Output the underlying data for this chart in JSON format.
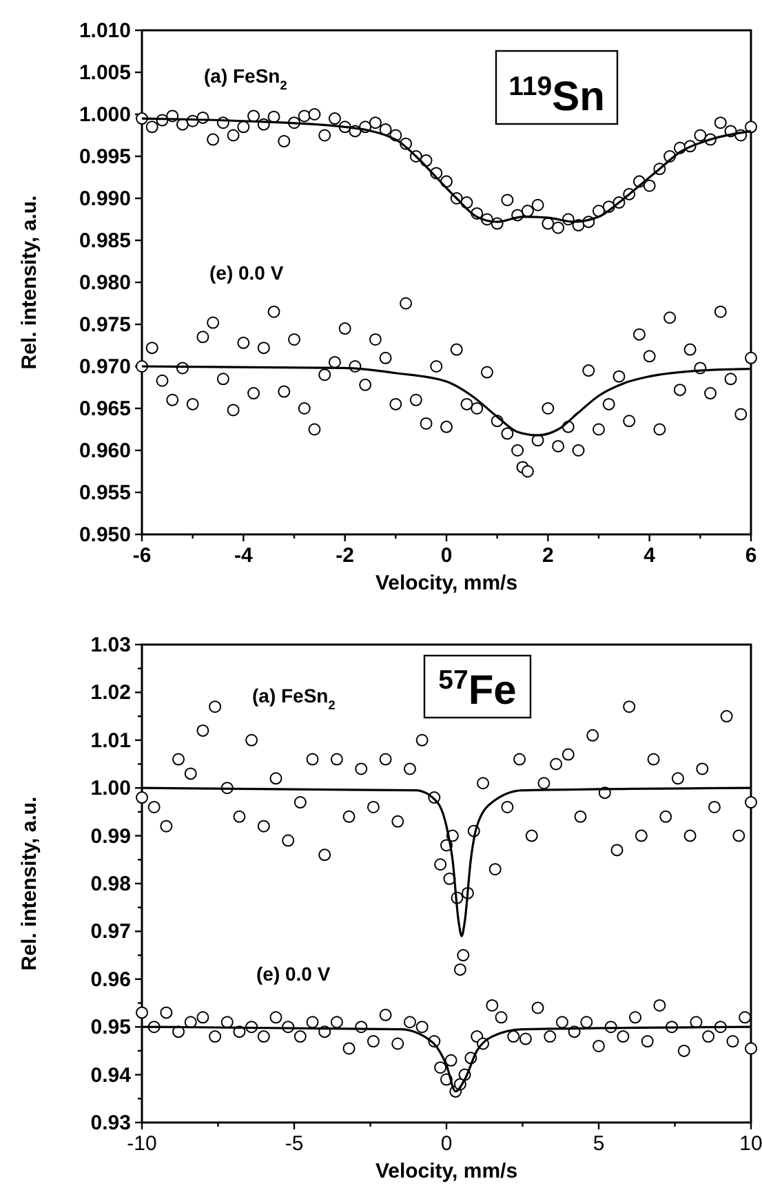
{
  "chart_data": [
    {
      "type": "scatter",
      "xlabel": "Velocity, mm/s",
      "ylabel": "Rel. intensity, a.u.",
      "xlim": [
        -6,
        6
      ],
      "ylim": [
        0.95,
        1.01
      ],
      "xticks": [
        -6,
        {
          "value": -5,
          "label": null
        },
        -4,
        {
          "value": -3,
          "label": null
        },
        -2,
        {
          "value": -1,
          "label": null
        },
        0,
        {
          "value": 1,
          "label": null
        },
        2,
        {
          "value": 3,
          "label": null
        },
        4,
        {
          "value": 5,
          "label": null
        },
        6
      ],
      "yticks": [
        {
          "value": 0.95,
          "label": "0.950"
        },
        {
          "value": 0.955,
          "label": "0.955"
        },
        {
          "value": 0.96,
          "label": "0.960"
        },
        {
          "value": 0.965,
          "label": "0.965"
        },
        {
          "value": 0.97,
          "label": "0.970"
        },
        {
          "value": 0.975,
          "label": "0.975"
        },
        {
          "value": 0.98,
          "label": "0.980"
        },
        {
          "value": 0.985,
          "label": "0.985"
        },
        {
          "value": 0.99,
          "label": "0.990"
        },
        {
          "value": 0.995,
          "label": "0.995"
        },
        {
          "value": 1.0,
          "label": "1.000"
        },
        {
          "value": 1.005,
          "label": "1.005"
        },
        {
          "value": 1.01,
          "label": "1.010"
        }
      ],
      "marker": "circle",
      "annotations": [
        "$^{119}$Sn"
      ],
      "series": [
        {
          "name": "(a) FeSn$_{2}$",
          "color": "#000000",
          "x": [
            -6.0,
            -5.8,
            -5.6,
            -5.4,
            -5.2,
            -5.0,
            -4.8,
            -4.6,
            -4.4,
            -4.2,
            -4.0,
            -3.8,
            -3.6,
            -3.4,
            -3.2,
            -3.0,
            -2.8,
            -2.6,
            -2.4,
            -2.2,
            -2.0,
            -1.8,
            -1.6,
            -1.4,
            -1.2,
            -1.0,
            -0.8,
            -0.6,
            -0.4,
            -0.2,
            0.0,
            0.2,
            0.4,
            0.6,
            0.8,
            1.0,
            1.2,
            1.4,
            1.6,
            1.8,
            2.0,
            2.2,
            2.4,
            2.6,
            2.8,
            3.0,
            3.2,
            3.4,
            3.6,
            3.8,
            4.0,
            4.2,
            4.4,
            4.6,
            4.8,
            5.0,
            5.2,
            5.4,
            5.6,
            5.8,
            6.0
          ],
          "values": [
            0.9995,
            0.9985,
            0.9993,
            0.9998,
            0.9988,
            0.9992,
            0.9996,
            0.997,
            0.999,
            0.9975,
            0.9985,
            0.9998,
            0.9988,
            0.9997,
            0.9968,
            0.999,
            0.9998,
            1.0,
            0.9975,
            0.9995,
            0.9985,
            0.998,
            0.9985,
            0.999,
            0.9982,
            0.9975,
            0.9965,
            0.995,
            0.9945,
            0.993,
            0.992,
            0.99,
            0.9895,
            0.9882,
            0.9875,
            0.987,
            0.9898,
            0.988,
            0.9885,
            0.9892,
            0.987,
            0.9865,
            0.9875,
            0.9868,
            0.9872,
            0.9885,
            0.989,
            0.9895,
            0.9905,
            0.992,
            0.9915,
            0.9935,
            0.995,
            0.996,
            0.9962,
            0.9975,
            0.997,
            0.999,
            0.998,
            0.9975,
            0.9985
          ]
        },
        {
          "type": "line",
          "marker": "none",
          "color": "#000000",
          "x": [
            -6,
            -4,
            -2,
            -1,
            -0.6,
            -0.2,
            0.2,
            0.6,
            1.0,
            1.5,
            2.0,
            2.5,
            3.0,
            3.4,
            3.8,
            4.2,
            4.6,
            5.2,
            6
          ],
          "values": [
            0.9995,
            0.9992,
            0.9985,
            0.997,
            0.995,
            0.9925,
            0.99,
            0.9878,
            0.9872,
            0.9878,
            0.9877,
            0.9872,
            0.9878,
            0.9895,
            0.9915,
            0.9935,
            0.9955,
            0.997,
            0.998
          ]
        },
        {
          "name": "(e) 0.0 V",
          "color": "#000000",
          "x": [
            -6.0,
            -5.8,
            -5.6,
            -5.4,
            -5.2,
            -5.0,
            -4.8,
            -4.6,
            -4.4,
            -4.2,
            -4.0,
            -3.8,
            -3.6,
            -3.4,
            -3.2,
            -3.0,
            -2.8,
            -2.6,
            -2.4,
            -2.2,
            -2.0,
            -1.8,
            -1.6,
            -1.4,
            -1.2,
            -1.0,
            -0.8,
            -0.6,
            -0.4,
            -0.2,
            0.0,
            0.2,
            0.4,
            0.6,
            0.8,
            1.0,
            1.2,
            1.4,
            1.5,
            1.6,
            1.8,
            2.0,
            2.2,
            2.4,
            2.6,
            2.8,
            3.0,
            3.2,
            3.4,
            3.6,
            3.8,
            4.0,
            4.2,
            4.4,
            4.6,
            4.8,
            5.0,
            5.2,
            5.4,
            5.6,
            5.8,
            6.0
          ],
          "values": [
            0.97,
            0.9722,
            0.9683,
            0.966,
            0.9698,
            0.9655,
            0.9735,
            0.9752,
            0.9685,
            0.9648,
            0.9728,
            0.9668,
            0.9722,
            0.9765,
            0.967,
            0.9732,
            0.965,
            0.9625,
            0.969,
            0.9705,
            0.9745,
            0.97,
            0.9678,
            0.9732,
            0.971,
            0.9655,
            0.9775,
            0.966,
            0.9632,
            0.97,
            0.9628,
            0.972,
            0.9655,
            0.965,
            0.9693,
            0.9635,
            0.962,
            0.96,
            0.958,
            0.9575,
            0.9612,
            0.965,
            0.9605,
            0.9628,
            0.96,
            0.9695,
            0.9625,
            0.9655,
            0.9688,
            0.9635,
            0.9738,
            0.9712,
            0.9625,
            0.9758,
            0.9672,
            0.972,
            0.9698,
            0.9668,
            0.9765,
            0.9685,
            0.9643,
            0.971
          ]
        },
        {
          "type": "line",
          "marker": "none",
          "color": "#000000",
          "x": [
            -6,
            -2,
            -1,
            0,
            0.5,
            1.0,
            1.4,
            1.8,
            2.2,
            2.6,
            3.0,
            3.5,
            4.0,
            5,
            6
          ],
          "values": [
            0.97,
            0.9698,
            0.9692,
            0.9682,
            0.9665,
            0.964,
            0.9622,
            0.9618,
            0.9625,
            0.9645,
            0.9665,
            0.968,
            0.9688,
            0.9695,
            0.9697
          ]
        }
      ]
    },
    {
      "type": "scatter",
      "xlabel": "Velocity, mm/s",
      "ylabel": "Rel. intensity, a.u.",
      "xlim": [
        -10,
        10
      ],
      "ylim": [
        0.93,
        1.03
      ],
      "xticks": [
        -10,
        {
          "value": -7.5,
          "label": null
        },
        -5,
        {
          "value": -2.5,
          "label": null
        },
        0,
        {
          "value": 2.5,
          "label": null
        },
        5,
        {
          "value": 7.5,
          "label": null
        },
        10
      ],
      "yticks": [
        {
          "value": 0.93,
          "label": "0.93"
        },
        {
          "value": 0.935,
          "label": null
        },
        {
          "value": 0.94,
          "label": "0.94"
        },
        {
          "value": 0.945,
          "label": null
        },
        {
          "value": 0.95,
          "label": "0.95"
        },
        {
          "value": 0.955,
          "label": null
        },
        {
          "value": 0.96,
          "label": "0.96"
        },
        {
          "value": 0.965,
          "label": null
        },
        {
          "value": 0.97,
          "label": "0.97"
        },
        {
          "value": 0.975,
          "label": null
        },
        {
          "value": 0.98,
          "label": "0.98"
        },
        {
          "value": 0.985,
          "label": null
        },
        {
          "value": 0.99,
          "label": "0.99"
        },
        {
          "value": 0.995,
          "label": null
        },
        {
          "value": 1.0,
          "label": "1.00"
        },
        {
          "value": 1.005,
          "label": null
        },
        {
          "value": 1.01,
          "label": "1.01"
        },
        {
          "value": 1.015,
          "label": null
        },
        {
          "value": 1.02,
          "label": "1.02"
        },
        {
          "value": 1.025,
          "label": null
        },
        {
          "value": 1.03,
          "label": "1.03"
        }
      ],
      "marker": "circle",
      "annotations": [
        "$^{57}$Fe"
      ],
      "series": [
        {
          "name": "(a) FeSn$_{2}$",
          "color": "#000000",
          "x": [
            -10.0,
            -9.6,
            -9.2,
            -8.8,
            -8.4,
            -8.0,
            -7.6,
            -7.2,
            -6.8,
            -6.4,
            -6.0,
            -5.6,
            -5.2,
            -4.8,
            -4.4,
            -4.0,
            -3.6,
            -3.2,
            -2.8,
            -2.4,
            -2.0,
            -1.6,
            -1.2,
            -0.8,
            -0.4,
            -0.2,
            0.0,
            0.1,
            0.2,
            0.35,
            0.45,
            0.55,
            0.7,
            0.9,
            1.2,
            1.6,
            2.0,
            2.4,
            2.8,
            3.2,
            3.6,
            4.0,
            4.4,
            4.8,
            5.2,
            5.6,
            6.0,
            6.4,
            6.8,
            7.2,
            7.6,
            8.0,
            8.4,
            8.8,
            9.2,
            9.6,
            10.0
          ],
          "values": [
            0.998,
            0.996,
            0.992,
            1.006,
            1.003,
            1.012,
            1.017,
            1.0,
            0.994,
            1.01,
            0.992,
            1.002,
            0.989,
            0.997,
            1.006,
            0.986,
            1.006,
            0.994,
            1.004,
            0.996,
            1.006,
            0.993,
            1.004,
            1.01,
            0.998,
            0.984,
            0.988,
            0.981,
            0.99,
            0.977,
            0.962,
            0.965,
            0.978,
            0.991,
            1.001,
            0.983,
            0.996,
            1.006,
            0.99,
            1.001,
            1.005,
            1.007,
            0.994,
            1.011,
            0.999,
            0.987,
            1.017,
            0.99,
            1.006,
            0.994,
            1.002,
            0.99,
            1.004,
            0.996,
            1.015,
            0.99,
            0.997
          ]
        },
        {
          "type": "line",
          "marker": "none",
          "color": "#000000",
          "x": [
            -10,
            -1,
            -0.3,
            0,
            0.2,
            0.4,
            0.5,
            0.6,
            0.8,
            1.0,
            1.5,
            2.5,
            10
          ],
          "values": [
            1.0,
            0.9995,
            0.997,
            0.992,
            0.985,
            0.972,
            0.969,
            0.972,
            0.985,
            0.992,
            0.997,
            0.9995,
            1.0
          ]
        },
        {
          "name": "(e) 0.0 V",
          "color": "#000000",
          "x": [
            -10.0,
            -9.6,
            -9.2,
            -8.8,
            -8.4,
            -8.0,
            -7.6,
            -7.2,
            -6.8,
            -6.4,
            -6.0,
            -5.6,
            -5.2,
            -4.8,
            -4.4,
            -4.0,
            -3.6,
            -3.2,
            -2.8,
            -2.4,
            -2.0,
            -1.6,
            -1.2,
            -0.8,
            -0.4,
            -0.2,
            0.0,
            0.15,
            0.3,
            0.45,
            0.6,
            0.8,
            1.0,
            1.2,
            1.5,
            1.8,
            2.2,
            2.6,
            3.0,
            3.4,
            3.8,
            4.2,
            4.6,
            5.0,
            5.4,
            5.8,
            6.2,
            6.6,
            7.0,
            7.4,
            7.8,
            8.2,
            8.6,
            9.0,
            9.4,
            9.8,
            10.0
          ],
          "values": [
            0.953,
            0.95,
            0.953,
            0.949,
            0.951,
            0.952,
            0.948,
            0.951,
            0.949,
            0.95,
            0.948,
            0.952,
            0.95,
            0.948,
            0.951,
            0.949,
            0.951,
            0.9455,
            0.95,
            0.947,
            0.9525,
            0.9465,
            0.951,
            0.95,
            0.947,
            0.9415,
            0.939,
            0.943,
            0.9365,
            0.938,
            0.94,
            0.9435,
            0.948,
            0.9465,
            0.9545,
            0.952,
            0.948,
            0.9475,
            0.954,
            0.948,
            0.951,
            0.949,
            0.951,
            0.946,
            0.95,
            0.948,
            0.952,
            0.947,
            0.9545,
            0.95,
            0.945,
            0.951,
            0.948,
            0.95,
            0.947,
            0.952,
            0.9455
          ]
        },
        {
          "type": "line",
          "marker": "none",
          "color": "#000000",
          "x": [
            -10,
            -1.5,
            -0.5,
            0,
            0.3,
            0.6,
            1.0,
            1.5,
            2.5,
            10
          ],
          "values": [
            0.95,
            0.9495,
            0.947,
            0.942,
            0.9365,
            0.939,
            0.945,
            0.948,
            0.9495,
            0.95
          ]
        }
      ]
    }
  ]
}
